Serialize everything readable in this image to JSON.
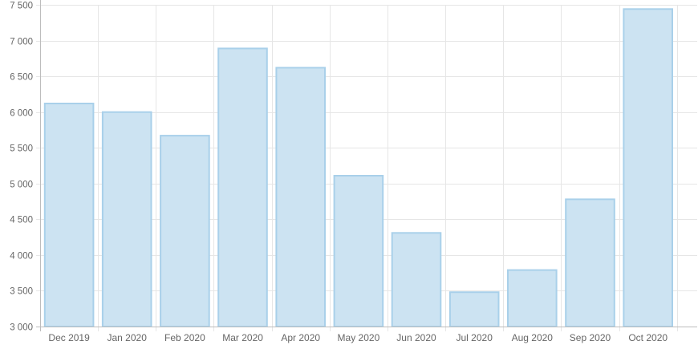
{
  "chart_data": {
    "type": "bar",
    "categories": [
      "Dec 2019",
      "Jan 2020",
      "Feb 2020",
      "Mar 2020",
      "Apr 2020",
      "May 2020",
      "Jun 2020",
      "Jul 2020",
      "Aug 2020",
      "Sep 2020",
      "Oct 2020"
    ],
    "values": [
      6120,
      6000,
      5670,
      6890,
      6620,
      5110,
      4310,
      3480,
      3790,
      4780,
      7440
    ],
    "ylim": [
      3000,
      7500
    ],
    "yticks": [
      3000,
      3500,
      4000,
      4500,
      5000,
      5500,
      6000,
      6500,
      7000,
      7500
    ],
    "ytick_labels": [
      "3 000",
      "3 500",
      "4 000",
      "4 500",
      "5 000",
      "5 500",
      "6 000",
      "6 500",
      "7 000",
      "7 500"
    ],
    "grid": true,
    "colors": {
      "bar_fill": "#cce3f2",
      "bar_stroke": "#a9d0ea",
      "grid": "#e6e6e6",
      "axis": "#bdbdbd",
      "text": "#666666"
    }
  }
}
